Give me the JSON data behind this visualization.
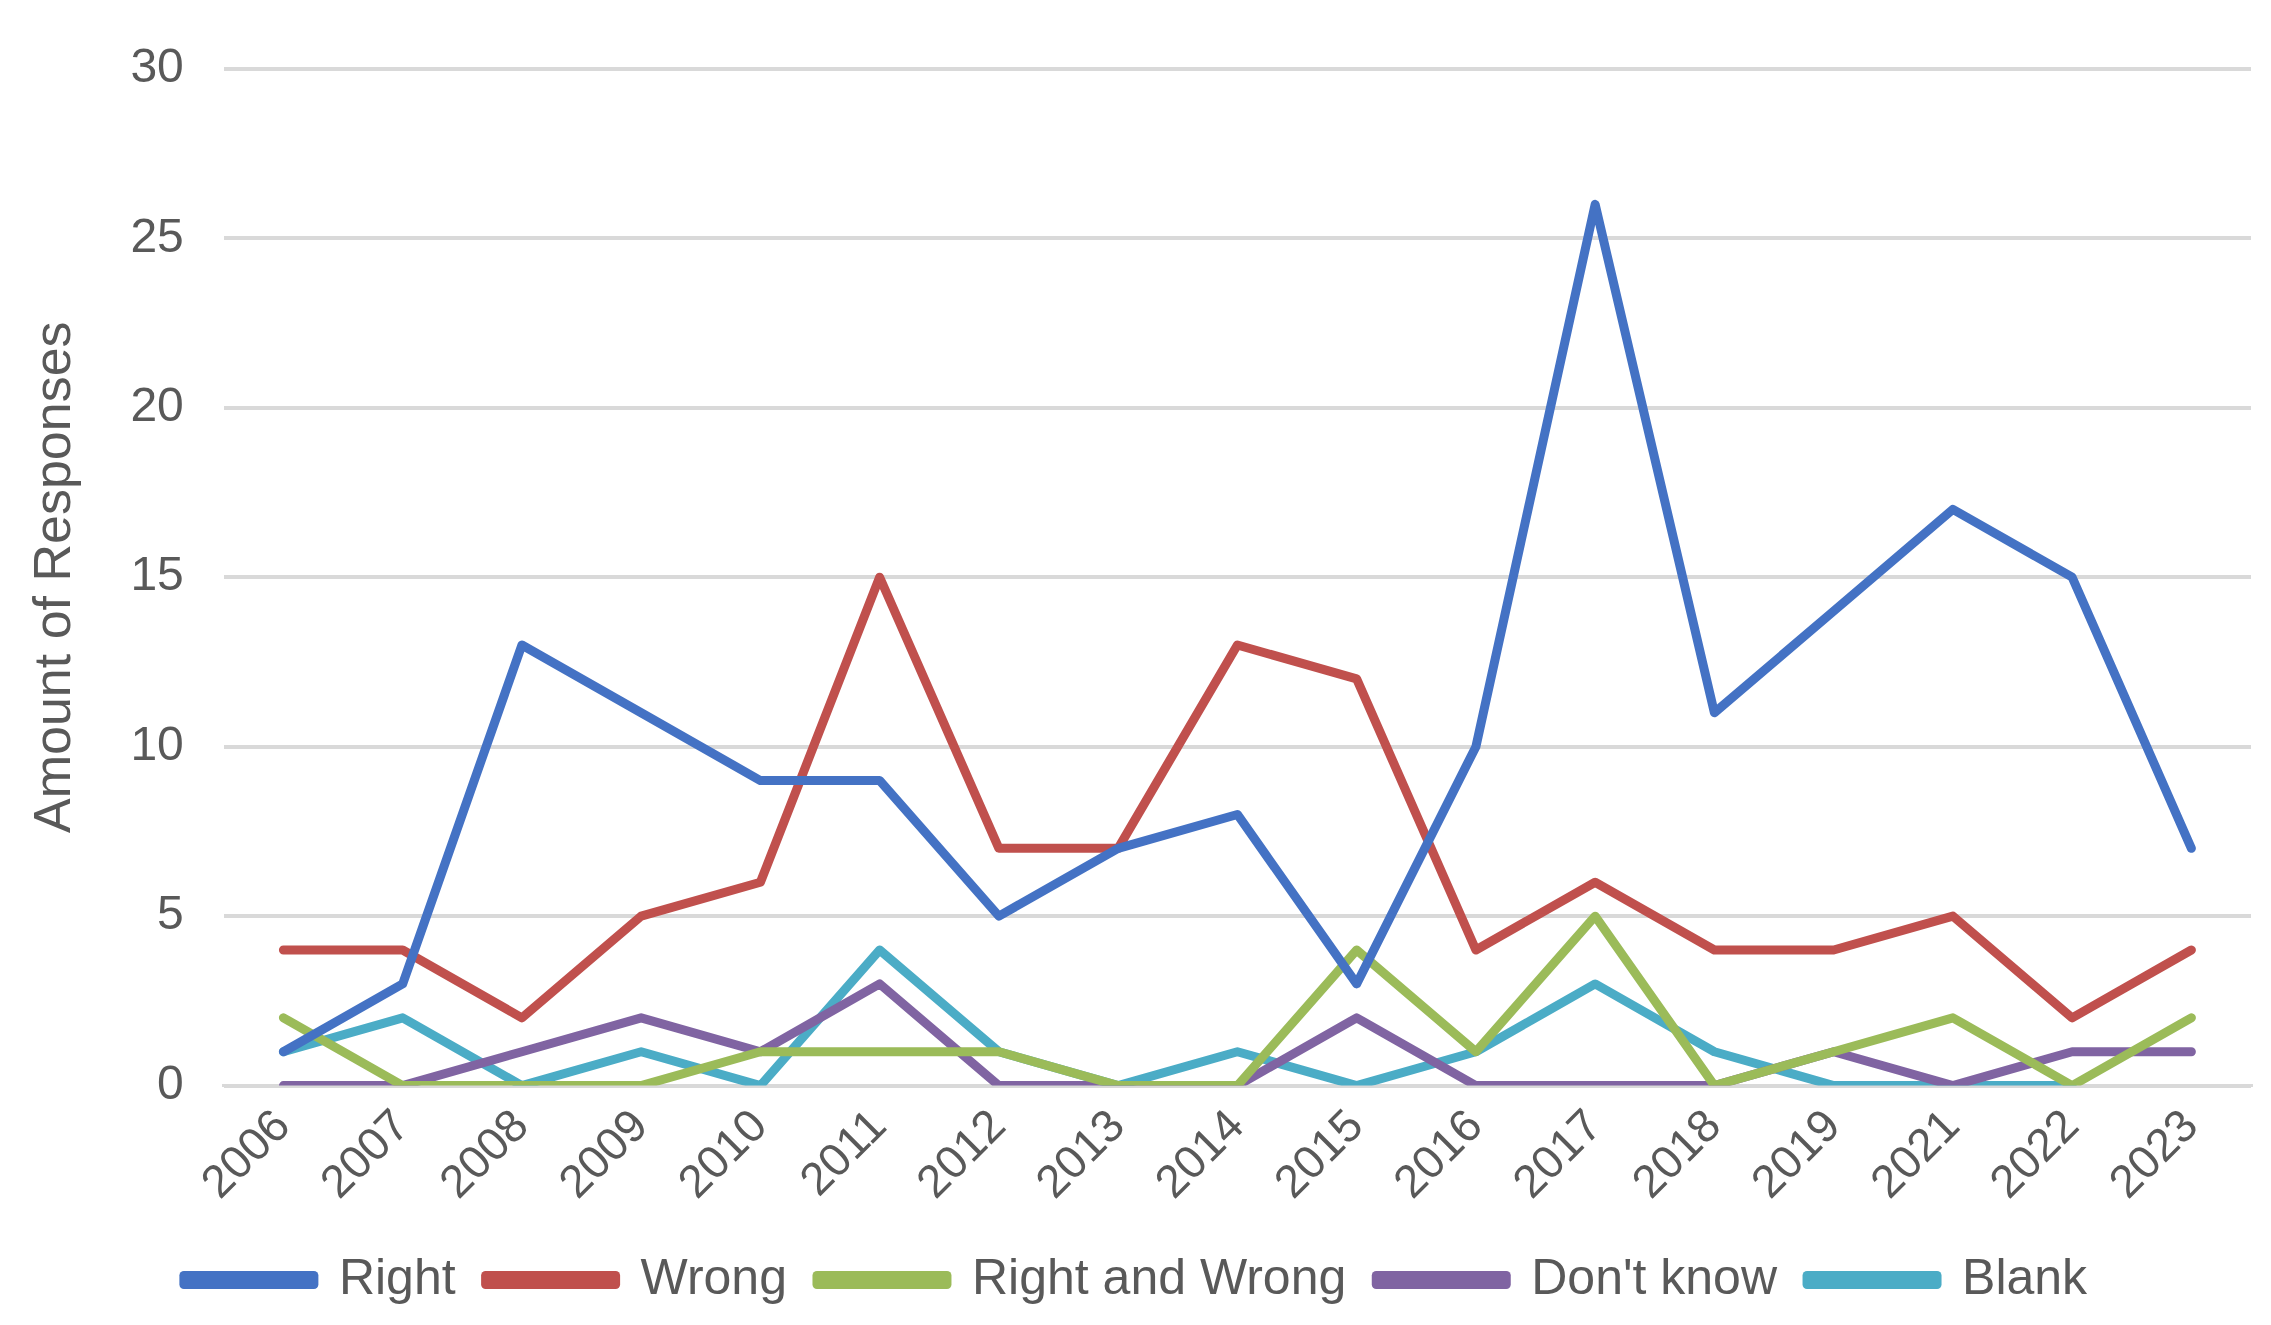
{
  "chart_data": {
    "type": "line",
    "ylabel": "Amount of Responses",
    "categories": [
      "2006",
      "2007",
      "2008",
      "2009",
      "2010",
      "2011",
      "2012",
      "2013",
      "2014",
      "2015",
      "2016",
      "2017",
      "2018",
      "2019",
      "2021",
      "2022",
      "2023"
    ],
    "series": [
      {
        "name": "Right",
        "color": "#4472c4",
        "values": [
          1,
          3,
          13,
          11,
          9,
          9,
          5,
          7,
          8,
          3,
          10,
          26,
          11,
          14,
          17,
          15,
          7
        ]
      },
      {
        "name": "Wrong",
        "color": "#c0504d",
        "values": [
          4,
          4,
          2,
          5,
          6,
          15,
          7,
          7,
          13,
          12,
          4,
          6,
          4,
          4,
          5,
          2,
          4
        ]
      },
      {
        "name": "Right and Wrong",
        "color": "#9bbb59",
        "values": [
          2,
          0,
          0,
          0,
          1,
          1,
          1,
          0,
          0,
          4,
          1,
          5,
          0,
          1,
          2,
          0,
          2
        ]
      },
      {
        "name": "Don't know",
        "color": "#8064a2",
        "values": [
          0,
          0,
          1,
          2,
          1,
          3,
          0,
          0,
          0,
          2,
          0,
          0,
          0,
          1,
          0,
          1,
          1
        ]
      },
      {
        "name": "Blank",
        "color": "#4bacc6",
        "values": [
          1,
          2,
          0,
          1,
          0,
          4,
          1,
          0,
          1,
          0,
          1,
          3,
          1,
          0,
          0,
          0,
          null
        ]
      }
    ],
    "ylim": [
      0,
      30
    ],
    "yticks": [
      0,
      5,
      10,
      15,
      20,
      25,
      30
    ],
    "grid": "y",
    "legend": "bottom",
    "marker": "none",
    "line_style": "solid"
  }
}
